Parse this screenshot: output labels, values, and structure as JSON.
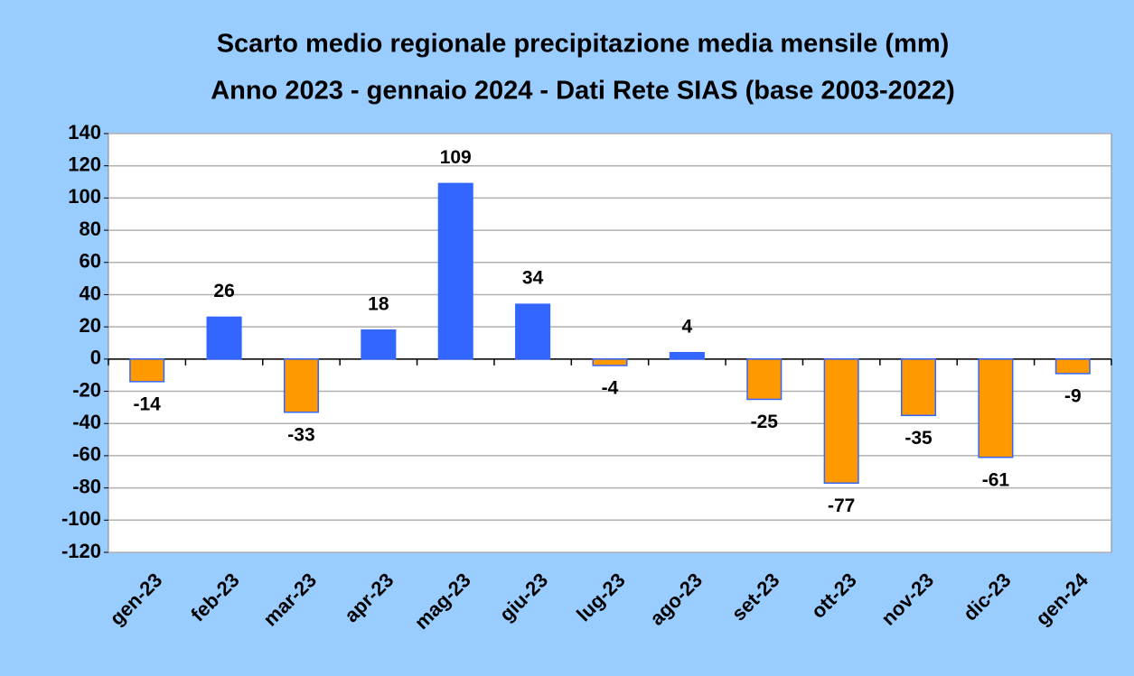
{
  "chart_data": {
    "type": "bar",
    "title": "Scarto medio regionale precipitazione media mensile (mm)",
    "subtitle": "Anno 2023 - gennaio 2024 - Dati Rete SIAS (base 2003-2022)",
    "categories": [
      "gen-23",
      "feb-23",
      "mar-23",
      "apr-23",
      "mag-23",
      "giu-23",
      "lug-23",
      "ago-23",
      "set-23",
      "ott-23",
      "nov-23",
      "dic-23",
      "gen-24"
    ],
    "values": [
      -14,
      26,
      -33,
      18,
      109,
      34,
      -4,
      4,
      -25,
      -77,
      -35,
      -61,
      -9
    ],
    "color_positive": "#3366ff",
    "color_negative": "#ff9900",
    "ylim": [
      -120,
      140
    ],
    "yticks": [
      -120,
      -100,
      -80,
      -60,
      -40,
      -20,
      0,
      20,
      40,
      60,
      80,
      100,
      120,
      140
    ],
    "grid": true
  }
}
